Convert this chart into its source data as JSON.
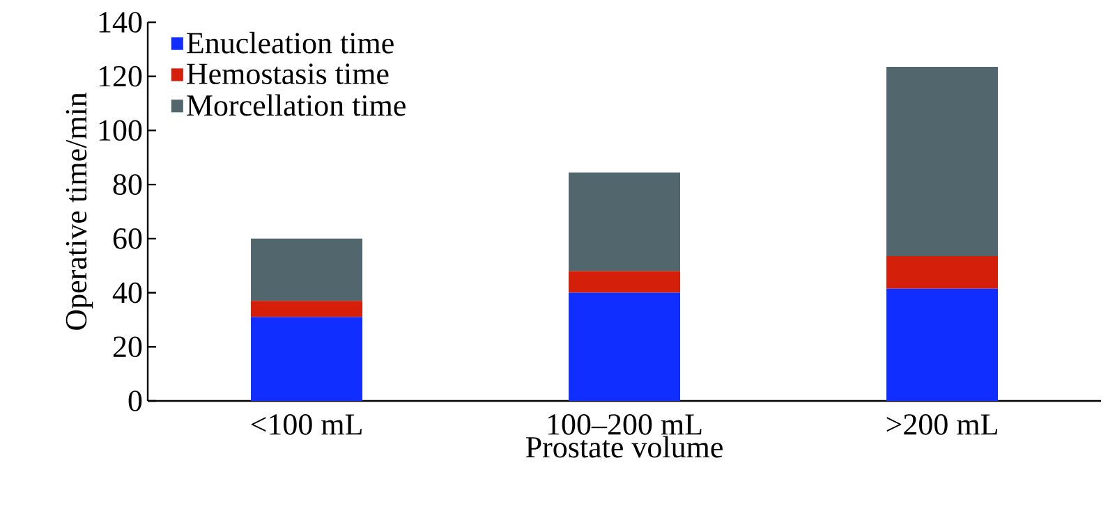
{
  "chart_data": {
    "type": "bar",
    "stacked": true,
    "xlabel": "Prostate volume",
    "ylabel": "Operative time/min",
    "categories": [
      "<100 mL",
      "100–200 mL",
      ">200 mL"
    ],
    "series": [
      {
        "name": "Enucleation time",
        "color": "#0f2eff",
        "values": [
          31,
          40,
          41.5
        ]
      },
      {
        "name": "Hemostasis time",
        "color": "#d4200a",
        "values": [
          6,
          8,
          12
        ]
      },
      {
        "name": "Morcellation time",
        "color": "#52676d",
        "values": [
          23,
          36.5,
          70
        ]
      }
    ],
    "ylim": [
      0,
      140
    ],
    "yticks": [
      0,
      20,
      40,
      60,
      80,
      100,
      120,
      140
    ],
    "legend": "top left",
    "grid": false
  }
}
